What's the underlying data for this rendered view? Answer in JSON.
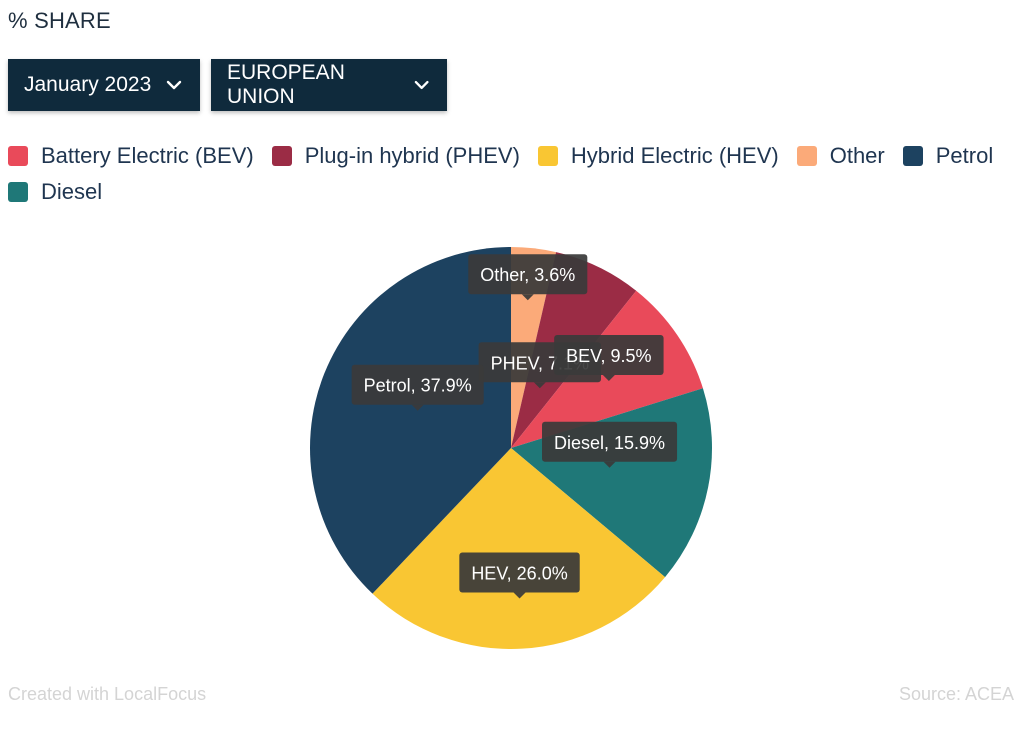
{
  "header": {
    "title": "% SHARE"
  },
  "filters": {
    "period": "January 2023",
    "region": "EUROPEAN UNION"
  },
  "chart_data": {
    "type": "pie",
    "slices": [
      {
        "name": "Battery Electric (BEV)",
        "short": "BEV",
        "value": 9.5,
        "color": "#e94a5a"
      },
      {
        "name": "Plug-in hybrid (PHEV)",
        "short": "PHEV",
        "value": 7.1,
        "color": "#9b2c45"
      },
      {
        "name": "Hybrid Electric (HEV)",
        "short": "HEV",
        "value": 26.0,
        "color": "#f9c633"
      },
      {
        "name": "Other",
        "short": "Other",
        "value": 3.6,
        "color": "#fbaa79"
      },
      {
        "name": "Petrol",
        "short": "Petrol",
        "value": 37.9,
        "color": "#1d4260"
      },
      {
        "name": "Diesel",
        "short": "Diesel",
        "value": 15.9,
        "color": "#1f7878"
      }
    ],
    "slice_order": [
      "Other",
      "PHEV",
      "BEV",
      "Diesel",
      "HEV",
      "Petrol"
    ],
    "label_format": "{short}, {value}%"
  },
  "footer": {
    "credit": "Created with LocalFocus",
    "source": "Source:  ACEA"
  },
  "colors": {
    "dropdown_bg": "#0f2a3c",
    "tooltip_bg": "#3a3a3a"
  }
}
